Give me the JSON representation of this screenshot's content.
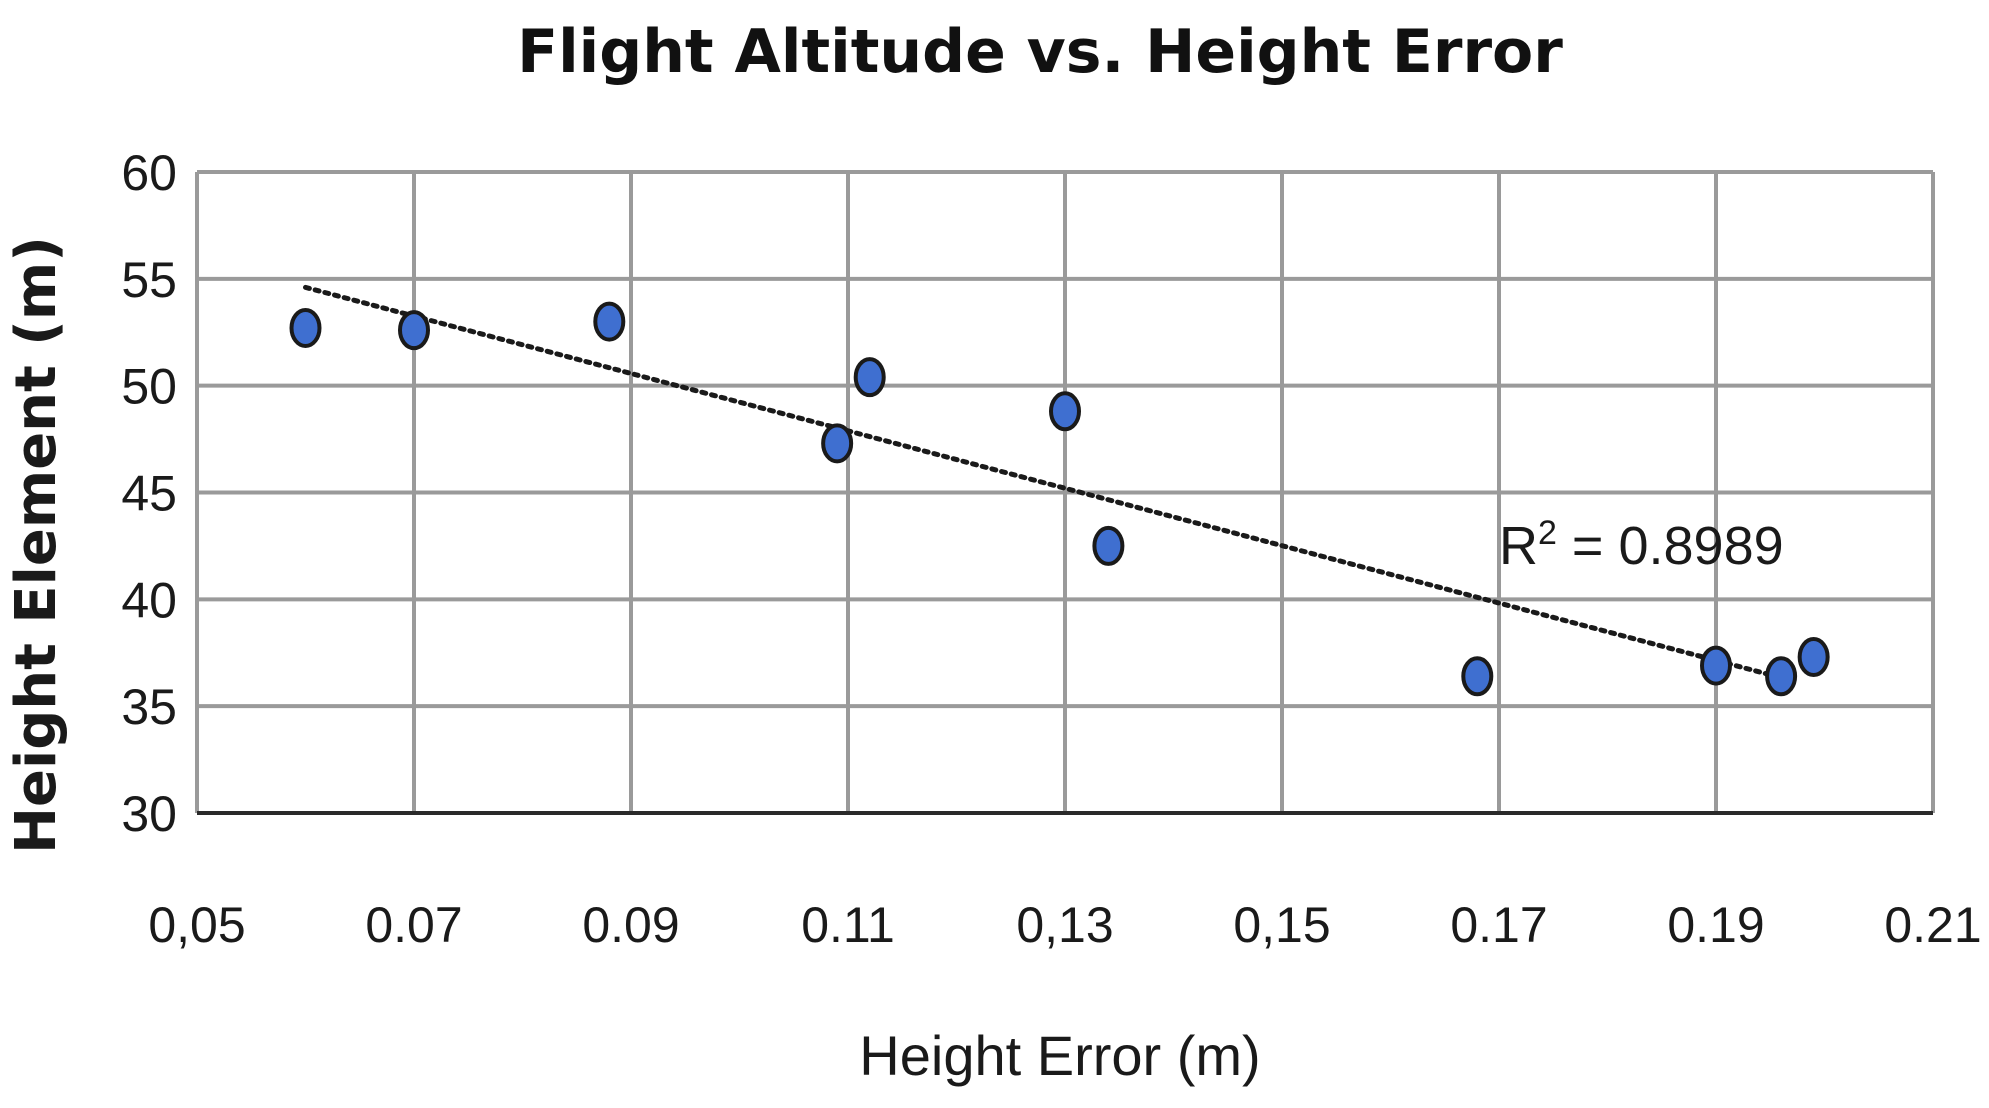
{
  "chart_data": {
    "type": "scatter",
    "title": "Flight Altitude vs. Height Error",
    "xlabel": "Height Error (m)",
    "ylabel": "Height Element (m)",
    "xlim": [
      0.05,
      0.21
    ],
    "ylim": [
      30,
      60
    ],
    "xticks": [
      0.05,
      0.07,
      0.09,
      0.11,
      0.13,
      0.15,
      0.17,
      0.19,
      0.21
    ],
    "xtick_labels": [
      "0,05",
      "0.07",
      "0.09",
      "0.11",
      "0,13",
      "0,15",
      "0.17",
      "0.19",
      "0.21"
    ],
    "yticks": [
      30,
      35,
      40,
      45,
      50,
      55,
      60
    ],
    "ytick_labels": [
      "30",
      "35",
      "40",
      "45",
      "50",
      "55",
      "60"
    ],
    "grid": true,
    "legend": "none",
    "marker_color": "#3f6fd0",
    "marker_edge": "#1a1a1a",
    "series": [
      {
        "x": [
          0.06,
          0.07,
          0.088,
          0.109,
          0.112,
          0.13,
          0.134,
          0.168,
          0.19,
          0.196,
          0.199
        ],
        "y": [
          52.7,
          52.6,
          53.0,
          47.3,
          50.4,
          48.8,
          42.5,
          36.4,
          36.9,
          36.4,
          37.3
        ]
      }
    ],
    "trendline": {
      "style": "dotted",
      "x": [
        0.06,
        0.197
      ],
      "y": [
        54.6,
        36.2
      ]
    },
    "annotation": {
      "r_label": "R",
      "exp": "2",
      "value_text": " = 0.8989",
      "x": 0.17,
      "y": 42.5
    }
  }
}
